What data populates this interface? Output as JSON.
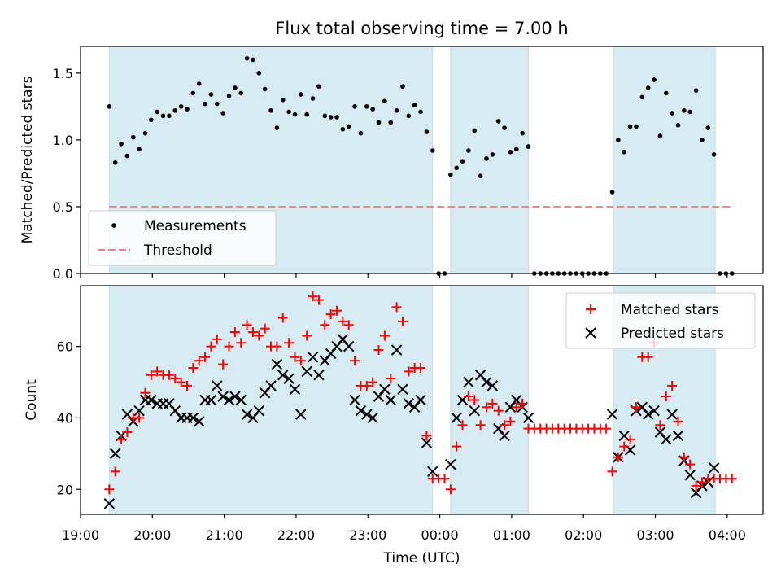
{
  "chart_data": [
    {
      "type": "scatter",
      "title": "Flux total observing time = 7.00 h",
      "xlabel": "",
      "ylabel": "Matched/Predicted stars",
      "ylim": [
        0,
        1.7
      ],
      "xlim": [
        "19:00",
        "04:30"
      ],
      "yticks": [
        "0.0",
        "0.5",
        "1.0",
        "1.5"
      ],
      "ytick_values": [
        0,
        0.5,
        1.0,
        1.5
      ],
      "shaded_intervals": [
        [
          "19:24",
          "23:54"
        ],
        [
          "00:09",
          "01:14"
        ],
        [
          "02:25",
          "03:50"
        ]
      ],
      "legend_position": "lower-left",
      "series": [
        {
          "name": "Measurements",
          "marker": "dot",
          "color": "#000000",
          "x": [
            "19:24",
            "19:29",
            "19:34",
            "19:39",
            "19:44",
            "19:49",
            "19:54",
            "19:59",
            "20:04",
            "20:09",
            "20:14",
            "20:19",
            "20:24",
            "20:29",
            "20:34",
            "20:39",
            "20:44",
            "20:49",
            "20:54",
            "20:59",
            "21:04",
            "21:09",
            "21:14",
            "21:19",
            "21:24",
            "21:29",
            "21:34",
            "21:39",
            "21:44",
            "21:49",
            "21:54",
            "21:59",
            "22:04",
            "22:09",
            "22:14",
            "22:19",
            "22:24",
            "22:29",
            "22:34",
            "22:39",
            "22:44",
            "22:49",
            "22:54",
            "22:59",
            "23:04",
            "23:09",
            "23:14",
            "23:19",
            "23:24",
            "23:29",
            "23:34",
            "23:39",
            "23:44",
            "23:49",
            "23:54",
            "23:59",
            "00:04",
            "00:09",
            "00:14",
            "00:19",
            "00:24",
            "00:29",
            "00:34",
            "00:39",
            "00:44",
            "00:49",
            "00:54",
            "00:59",
            "01:04",
            "01:09",
            "01:14",
            "01:19",
            "01:24",
            "01:29",
            "01:34",
            "01:39",
            "01:44",
            "01:49",
            "01:54",
            "01:59",
            "02:04",
            "02:09",
            "02:14",
            "02:19",
            "02:24",
            "02:29",
            "02:34",
            "02:39",
            "02:44",
            "02:49",
            "02:54",
            "02:59",
            "03:04",
            "03:09",
            "03:14",
            "03:19",
            "03:24",
            "03:29",
            "03:34",
            "03:39",
            "03:44",
            "03:49",
            "03:54",
            "03:59",
            "04:04"
          ],
          "y": [
            1.25,
            0.83,
            0.97,
            0.88,
            1.02,
            0.93,
            1.05,
            1.15,
            1.21,
            1.18,
            1.18,
            1.22,
            1.25,
            1.23,
            1.35,
            1.42,
            1.27,
            1.34,
            1.27,
            1.2,
            1.33,
            1.39,
            1.35,
            1.61,
            1.6,
            1.5,
            1.38,
            1.22,
            1.09,
            1.3,
            1.21,
            1.19,
            1.34,
            1.19,
            1.31,
            1.4,
            1.18,
            1.17,
            1.17,
            1.08,
            1.1,
            1.25,
            1.05,
            1.25,
            1.23,
            1.13,
            1.29,
            1.13,
            1.22,
            1.4,
            1.18,
            1.26,
            1.21,
            1.06,
            0.92,
            0.0,
            0.0,
            0.74,
            0.79,
            0.84,
            0.92,
            1.07,
            0.73,
            0.86,
            0.89,
            1.14,
            1.09,
            0.91,
            0.93,
            1.05,
            0.95,
            0.0,
            0.0,
            0.0,
            0.0,
            0.0,
            0.0,
            0.0,
            0.0,
            0.0,
            0.0,
            0.0,
            0.0,
            0.0,
            0.61,
            1.0,
            0.91,
            1.1,
            1.1,
            1.32,
            1.39,
            1.45,
            1.03,
            1.35,
            1.2,
            1.11,
            1.22,
            1.21,
            1.37,
            1.0,
            1.09,
            0.89,
            0.0,
            0.0,
            0.0
          ]
        },
        {
          "name": "Threshold",
          "style": "dashed",
          "color": "#f08080",
          "x": [
            "19:24",
            "04:04"
          ],
          "y": [
            0.5,
            0.5
          ]
        }
      ]
    },
    {
      "type": "scatter",
      "title": "",
      "xlabel": "Time (UTC)",
      "ylabel": "Count",
      "ylim": [
        13,
        77
      ],
      "xlim": [
        "19:00",
        "04:30"
      ],
      "yticks": [
        "20",
        "40",
        "60"
      ],
      "ytick_values": [
        20,
        40,
        60
      ],
      "xticks": [
        "19:00",
        "20:00",
        "21:00",
        "22:00",
        "23:00",
        "00:00",
        "01:00",
        "02:00",
        "03:00",
        "04:00"
      ],
      "shaded_intervals": [
        [
          "19:24",
          "23:54"
        ],
        [
          "00:09",
          "01:14"
        ],
        [
          "02:25",
          "03:50"
        ]
      ],
      "legend_position": "top-right",
      "series": [
        {
          "name": "Matched stars",
          "marker": "plus",
          "color": "#ff0000",
          "x": [
            "19:24",
            "19:29",
            "19:34",
            "19:39",
            "19:44",
            "19:49",
            "19:54",
            "19:59",
            "20:04",
            "20:09",
            "20:14",
            "20:19",
            "20:24",
            "20:29",
            "20:34",
            "20:39",
            "20:44",
            "20:49",
            "20:54",
            "20:59",
            "21:04",
            "21:09",
            "21:14",
            "21:19",
            "21:24",
            "21:29",
            "21:34",
            "21:39",
            "21:44",
            "21:49",
            "21:54",
            "21:59",
            "22:04",
            "22:09",
            "22:14",
            "22:19",
            "22:24",
            "22:29",
            "22:34",
            "22:39",
            "22:44",
            "22:49",
            "22:54",
            "22:59",
            "23:04",
            "23:09",
            "23:14",
            "23:19",
            "23:24",
            "23:29",
            "23:34",
            "23:39",
            "23:44",
            "23:49",
            "23:54",
            "23:59",
            "00:04",
            "00:09",
            "00:14",
            "00:19",
            "00:24",
            "00:29",
            "00:34",
            "00:39",
            "00:44",
            "00:49",
            "00:54",
            "00:59",
            "01:04",
            "01:09",
            "01:14",
            "01:19",
            "01:24",
            "01:29",
            "01:34",
            "01:39",
            "01:44",
            "01:49",
            "01:54",
            "01:59",
            "02:04",
            "02:09",
            "02:14",
            "02:19",
            "02:24",
            "02:29",
            "02:34",
            "02:39",
            "02:44",
            "02:49",
            "02:54",
            "02:59",
            "03:04",
            "03:09",
            "03:14",
            "03:19",
            "03:24",
            "03:29",
            "03:34",
            "03:39",
            "03:44",
            "03:49",
            "03:54",
            "03:59",
            "04:04"
          ],
          "y": [
            20,
            25,
            34,
            36,
            40,
            40,
            47,
            52,
            53,
            52,
            52,
            51,
            50,
            49,
            54,
            56,
            57,
            60,
            62,
            55,
            60,
            64,
            61,
            66,
            64,
            63,
            65,
            60,
            60,
            68,
            61,
            57,
            56,
            63,
            74,
            73,
            66,
            69,
            70,
            67,
            66,
            56,
            49,
            49,
            50,
            59,
            63,
            51,
            71,
            67,
            53,
            54,
            54,
            35,
            23,
            23,
            23,
            20,
            32,
            38,
            46,
            45,
            38,
            43,
            44,
            42,
            38,
            39,
            43,
            44,
            37,
            37,
            37,
            37,
            37,
            37,
            37,
            37,
            37,
            37,
            37,
            37,
            37,
            37,
            25,
            29,
            32,
            34,
            43,
            57,
            57,
            61,
            38,
            46,
            49,
            39,
            29,
            27,
            21,
            22,
            23,
            23,
            23,
            23,
            23
          ]
        },
        {
          "name": "Predicted stars",
          "marker": "x",
          "color": "#000000",
          "x": [
            "19:24",
            "19:29",
            "19:34",
            "19:39",
            "19:44",
            "19:49",
            "19:54",
            "19:59",
            "20:04",
            "20:09",
            "20:14",
            "20:19",
            "20:24",
            "20:29",
            "20:34",
            "20:39",
            "20:44",
            "20:49",
            "20:54",
            "20:59",
            "21:04",
            "21:09",
            "21:14",
            "21:19",
            "21:24",
            "21:29",
            "21:34",
            "21:39",
            "21:44",
            "21:49",
            "21:54",
            "21:59",
            "22:04",
            "22:09",
            "22:14",
            "22:19",
            "22:24",
            "22:29",
            "22:34",
            "22:39",
            "22:44",
            "22:49",
            "22:54",
            "22:59",
            "23:04",
            "23:09",
            "23:14",
            "23:19",
            "23:24",
            "23:29",
            "23:34",
            "23:39",
            "23:44",
            "23:49",
            "23:54",
            "23:59",
            "00:04",
            "00:09",
            "00:14",
            "00:19",
            "00:24",
            "00:29",
            "00:34",
            "00:39",
            "00:44",
            "00:49",
            "00:54",
            "00:59",
            "01:04",
            "01:09",
            "01:14",
            "02:24",
            "02:29",
            "02:34",
            "02:39",
            "02:44",
            "02:49",
            "02:54",
            "02:59",
            "03:04",
            "03:09",
            "03:14",
            "03:19",
            "03:24",
            "03:29",
            "03:34",
            "03:39",
            "03:44",
            "03:49"
          ],
          "y": [
            16,
            30,
            35,
            41,
            39,
            42,
            45,
            45,
            44,
            44,
            44,
            42,
            40,
            40,
            40,
            39,
            45,
            45,
            49,
            46,
            45,
            46,
            45,
            41,
            40,
            42,
            47,
            49,
            55,
            52,
            51,
            48,
            41,
            53,
            57,
            52,
            56,
            58,
            60,
            62,
            60,
            45,
            42,
            41,
            40,
            46,
            48,
            45,
            59,
            48,
            44,
            43,
            45,
            33,
            25,
            null,
            null,
            27,
            40,
            45,
            50,
            42,
            52,
            50,
            49,
            37,
            35,
            43,
            45,
            43,
            40,
            41,
            29,
            35,
            31,
            42,
            43,
            41,
            42,
            36,
            34,
            41,
            35,
            28,
            24,
            19,
            21,
            22,
            26
          ]
        }
      ]
    }
  ]
}
